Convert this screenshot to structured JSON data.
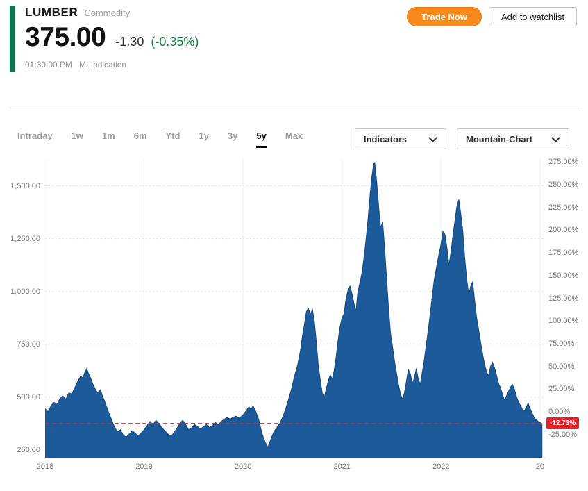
{
  "header": {
    "symbol": "LUMBER",
    "instrument_type": "Commodity",
    "price": "375.00",
    "change": "-1.30",
    "change_percent": "(-0.35%)",
    "time": "01:39:00 PM",
    "source": "MI Indication"
  },
  "actions": {
    "trade_now": "Trade Now",
    "add_watchlist": "Add to watchlist"
  },
  "toolbar": {
    "tabs": [
      {
        "label": "Intraday",
        "selected": false
      },
      {
        "label": "1w",
        "selected": false
      },
      {
        "label": "1m",
        "selected": false
      },
      {
        "label": "6m",
        "selected": false
      },
      {
        "label": "Ytd",
        "selected": false
      },
      {
        "label": "1y",
        "selected": false
      },
      {
        "label": "3y",
        "selected": false
      },
      {
        "label": "5y",
        "selected": true
      },
      {
        "label": "Max",
        "selected": false
      }
    ],
    "indicators_label": "Indicators",
    "chart_type_label": "Mountain-Chart"
  },
  "colors": {
    "accent_green": "#0a7653",
    "change_green": "#0c8b43",
    "trade_orange": "#f8891c",
    "chart_blue": "#1c5a99",
    "chart_blue_edge": "#16497e",
    "marker_red": "#e3242b"
  },
  "chart_data": {
    "type": "area",
    "title": "LUMBER commodity price, 5 year mountain chart",
    "x_domain": [
      2018,
      2023.05
    ],
    "y_domain": [
      210,
      1630
    ],
    "percent_base": 430,
    "grid": true,
    "left_ticks": [
      {
        "label": "1,500.00",
        "value": 1500
      },
      {
        "label": "1,250.00",
        "value": 1250
      },
      {
        "label": "1,000.00",
        "value": 1000
      },
      {
        "label": "750.00",
        "value": 750
      },
      {
        "label": "500.00",
        "value": 500
      },
      {
        "label": "250.00",
        "value": 250
      }
    ],
    "right_ticks": [
      {
        "label": "275.00%",
        "pct": 275
      },
      {
        "label": "250.00%",
        "pct": 250
      },
      {
        "label": "225.00%",
        "pct": 225
      },
      {
        "label": "200.00%",
        "pct": 200
      },
      {
        "label": "175.00%",
        "pct": 175
      },
      {
        "label": "150.00%",
        "pct": 150
      },
      {
        "label": "125.00%",
        "pct": 125
      },
      {
        "label": "100.00%",
        "pct": 100
      },
      {
        "label": "75.00%",
        "pct": 75
      },
      {
        "label": "50.00%",
        "pct": 50
      },
      {
        "label": "25.00%",
        "pct": 25
      },
      {
        "label": "0.00%",
        "pct": 0
      },
      {
        "label": "-25.00%",
        "pct": -25
      }
    ],
    "x_ticks": [
      {
        "label": "2018",
        "t": 2018
      },
      {
        "label": "2019",
        "t": 2019
      },
      {
        "label": "2020",
        "t": 2020
      },
      {
        "label": "2021",
        "t": 2021
      },
      {
        "label": "2022",
        "t": 2022
      },
      {
        "label": "20",
        "t": 2023
      }
    ],
    "marker": {
      "value": 375,
      "label": "-12.73%"
    },
    "series": [
      {
        "name": "LUMBER",
        "points": [
          [
            2018.0,
            445
          ],
          [
            2018.03,
            430
          ],
          [
            2018.06,
            460
          ],
          [
            2018.09,
            475
          ],
          [
            2018.12,
            465
          ],
          [
            2018.15,
            495
          ],
          [
            2018.18,
            505
          ],
          [
            2018.21,
            490
          ],
          [
            2018.24,
            520
          ],
          [
            2018.27,
            515
          ],
          [
            2018.3,
            545
          ],
          [
            2018.33,
            575
          ],
          [
            2018.36,
            600
          ],
          [
            2018.38,
            590
          ],
          [
            2018.4,
            615
          ],
          [
            2018.42,
            635
          ],
          [
            2018.44,
            610
          ],
          [
            2018.46,
            590
          ],
          [
            2018.48,
            565
          ],
          [
            2018.5,
            545
          ],
          [
            2018.53,
            520
          ],
          [
            2018.56,
            535
          ],
          [
            2018.58,
            505
          ],
          [
            2018.61,
            470
          ],
          [
            2018.64,
            430
          ],
          [
            2018.67,
            395
          ],
          [
            2018.7,
            360
          ],
          [
            2018.73,
            335
          ],
          [
            2018.76,
            345
          ],
          [
            2018.79,
            320
          ],
          [
            2018.82,
            310
          ],
          [
            2018.85,
            325
          ],
          [
            2018.88,
            340
          ],
          [
            2018.91,
            330
          ],
          [
            2018.94,
            315
          ],
          [
            2018.97,
            330
          ],
          [
            2019.0,
            345
          ],
          [
            2019.03,
            365
          ],
          [
            2019.06,
            385
          ],
          [
            2019.09,
            370
          ],
          [
            2019.12,
            390
          ],
          [
            2019.15,
            375
          ],
          [
            2019.18,
            355
          ],
          [
            2019.21,
            340
          ],
          [
            2019.24,
            325
          ],
          [
            2019.27,
            315
          ],
          [
            2019.3,
            330
          ],
          [
            2019.33,
            350
          ],
          [
            2019.36,
            375
          ],
          [
            2019.39,
            390
          ],
          [
            2019.42,
            370
          ],
          [
            2019.45,
            345
          ],
          [
            2019.48,
            355
          ],
          [
            2019.51,
            370
          ],
          [
            2019.54,
            360
          ],
          [
            2019.57,
            350
          ],
          [
            2019.6,
            360
          ],
          [
            2019.63,
            370
          ],
          [
            2019.66,
            355
          ],
          [
            2019.69,
            365
          ],
          [
            2019.72,
            380
          ],
          [
            2019.75,
            370
          ],
          [
            2019.78,
            385
          ],
          [
            2019.81,
            395
          ],
          [
            2019.84,
            405
          ],
          [
            2019.87,
            395
          ],
          [
            2019.9,
            405
          ],
          [
            2019.93,
            410
          ],
          [
            2019.96,
            400
          ],
          [
            2020.0,
            415
          ],
          [
            2020.03,
            435
          ],
          [
            2020.06,
            455
          ],
          [
            2020.08,
            440
          ],
          [
            2020.1,
            460
          ],
          [
            2020.13,
            430
          ],
          [
            2020.16,
            390
          ],
          [
            2020.19,
            330
          ],
          [
            2020.22,
            290
          ],
          [
            2020.25,
            262
          ],
          [
            2020.28,
            300
          ],
          [
            2020.31,
            335
          ],
          [
            2020.34,
            355
          ],
          [
            2020.37,
            375
          ],
          [
            2020.4,
            405
          ],
          [
            2020.43,
            445
          ],
          [
            2020.46,
            490
          ],
          [
            2020.49,
            540
          ],
          [
            2020.52,
            600
          ],
          [
            2020.55,
            650
          ],
          [
            2020.58,
            720
          ],
          [
            2020.6,
            790
          ],
          [
            2020.62,
            845
          ],
          [
            2020.64,
            905
          ],
          [
            2020.66,
            920
          ],
          [
            2020.68,
            890
          ],
          [
            2020.7,
            915
          ],
          [
            2020.72,
            860
          ],
          [
            2020.74,
            760
          ],
          [
            2020.76,
            650
          ],
          [
            2020.78,
            580
          ],
          [
            2020.8,
            520
          ],
          [
            2020.82,
            495
          ],
          [
            2020.84,
            540
          ],
          [
            2020.86,
            575
          ],
          [
            2020.88,
            605
          ],
          [
            2020.9,
            585
          ],
          [
            2020.92,
            625
          ],
          [
            2020.94,
            690
          ],
          [
            2020.96,
            770
          ],
          [
            2020.98,
            835
          ],
          [
            2021.0,
            875
          ],
          [
            2021.02,
            895
          ],
          [
            2021.04,
            965
          ],
          [
            2021.06,
            1005
          ],
          [
            2021.08,
            1025
          ],
          [
            2021.1,
            990
          ],
          [
            2021.12,
            945
          ],
          [
            2021.14,
            905
          ],
          [
            2021.16,
            1000
          ],
          [
            2021.18,
            1040
          ],
          [
            2021.2,
            1085
          ],
          [
            2021.22,
            1155
          ],
          [
            2021.24,
            1235
          ],
          [
            2021.26,
            1330
          ],
          [
            2021.28,
            1440
          ],
          [
            2021.3,
            1540
          ],
          [
            2021.32,
            1605
          ],
          [
            2021.33,
            1610
          ],
          [
            2021.35,
            1520
          ],
          [
            2021.37,
            1400
          ],
          [
            2021.39,
            1300
          ],
          [
            2021.41,
            1330
          ],
          [
            2021.43,
            1210
          ],
          [
            2021.45,
            1060
          ],
          [
            2021.47,
            920
          ],
          [
            2021.49,
            800
          ],
          [
            2021.51,
            740
          ],
          [
            2021.53,
            670
          ],
          [
            2021.55,
            615
          ],
          [
            2021.57,
            560
          ],
          [
            2021.59,
            515
          ],
          [
            2021.61,
            490
          ],
          [
            2021.63,
            520
          ],
          [
            2021.65,
            575
          ],
          [
            2021.67,
            630
          ],
          [
            2021.69,
            610
          ],
          [
            2021.71,
            565
          ],
          [
            2021.73,
            590
          ],
          [
            2021.75,
            635
          ],
          [
            2021.77,
            585
          ],
          [
            2021.79,
            560
          ],
          [
            2021.81,
            615
          ],
          [
            2021.83,
            675
          ],
          [
            2021.85,
            745
          ],
          [
            2021.87,
            815
          ],
          [
            2021.89,
            890
          ],
          [
            2021.91,
            975
          ],
          [
            2021.93,
            1050
          ],
          [
            2021.95,
            1105
          ],
          [
            2021.97,
            1155
          ],
          [
            2022.0,
            1225
          ],
          [
            2022.02,
            1285
          ],
          [
            2022.04,
            1270
          ],
          [
            2022.06,
            1205
          ],
          [
            2022.08,
            1125
          ],
          [
            2022.1,
            1185
          ],
          [
            2022.12,
            1265
          ],
          [
            2022.14,
            1335
          ],
          [
            2022.16,
            1405
          ],
          [
            2022.18,
            1435
          ],
          [
            2022.2,
            1365
          ],
          [
            2022.22,
            1285
          ],
          [
            2022.24,
            1155
          ],
          [
            2022.26,
            1055
          ],
          [
            2022.28,
            985
          ],
          [
            2022.3,
            1025
          ],
          [
            2022.32,
            1045
          ],
          [
            2022.34,
            955
          ],
          [
            2022.36,
            875
          ],
          [
            2022.38,
            820
          ],
          [
            2022.4,
            760
          ],
          [
            2022.42,
            705
          ],
          [
            2022.44,
            655
          ],
          [
            2022.46,
            620
          ],
          [
            2022.48,
            600
          ],
          [
            2022.5,
            645
          ],
          [
            2022.52,
            665
          ],
          [
            2022.54,
            640
          ],
          [
            2022.56,
            605
          ],
          [
            2022.58,
            565
          ],
          [
            2022.6,
            545
          ],
          [
            2022.62,
            515
          ],
          [
            2022.64,
            485
          ],
          [
            2022.66,
            505
          ],
          [
            2022.68,
            525
          ],
          [
            2022.7,
            545
          ],
          [
            2022.72,
            560
          ],
          [
            2022.74,
            540
          ],
          [
            2022.76,
            505
          ],
          [
            2022.78,
            480
          ],
          [
            2022.8,
            462
          ],
          [
            2022.82,
            445
          ],
          [
            2022.84,
            432
          ],
          [
            2022.86,
            452
          ],
          [
            2022.88,
            472
          ],
          [
            2022.9,
            445
          ],
          [
            2022.92,
            425
          ],
          [
            2022.94,
            405
          ],
          [
            2022.96,
            392
          ],
          [
            2022.98,
            386
          ],
          [
            2023.0,
            380
          ],
          [
            2023.02,
            375
          ]
        ]
      }
    ]
  }
}
